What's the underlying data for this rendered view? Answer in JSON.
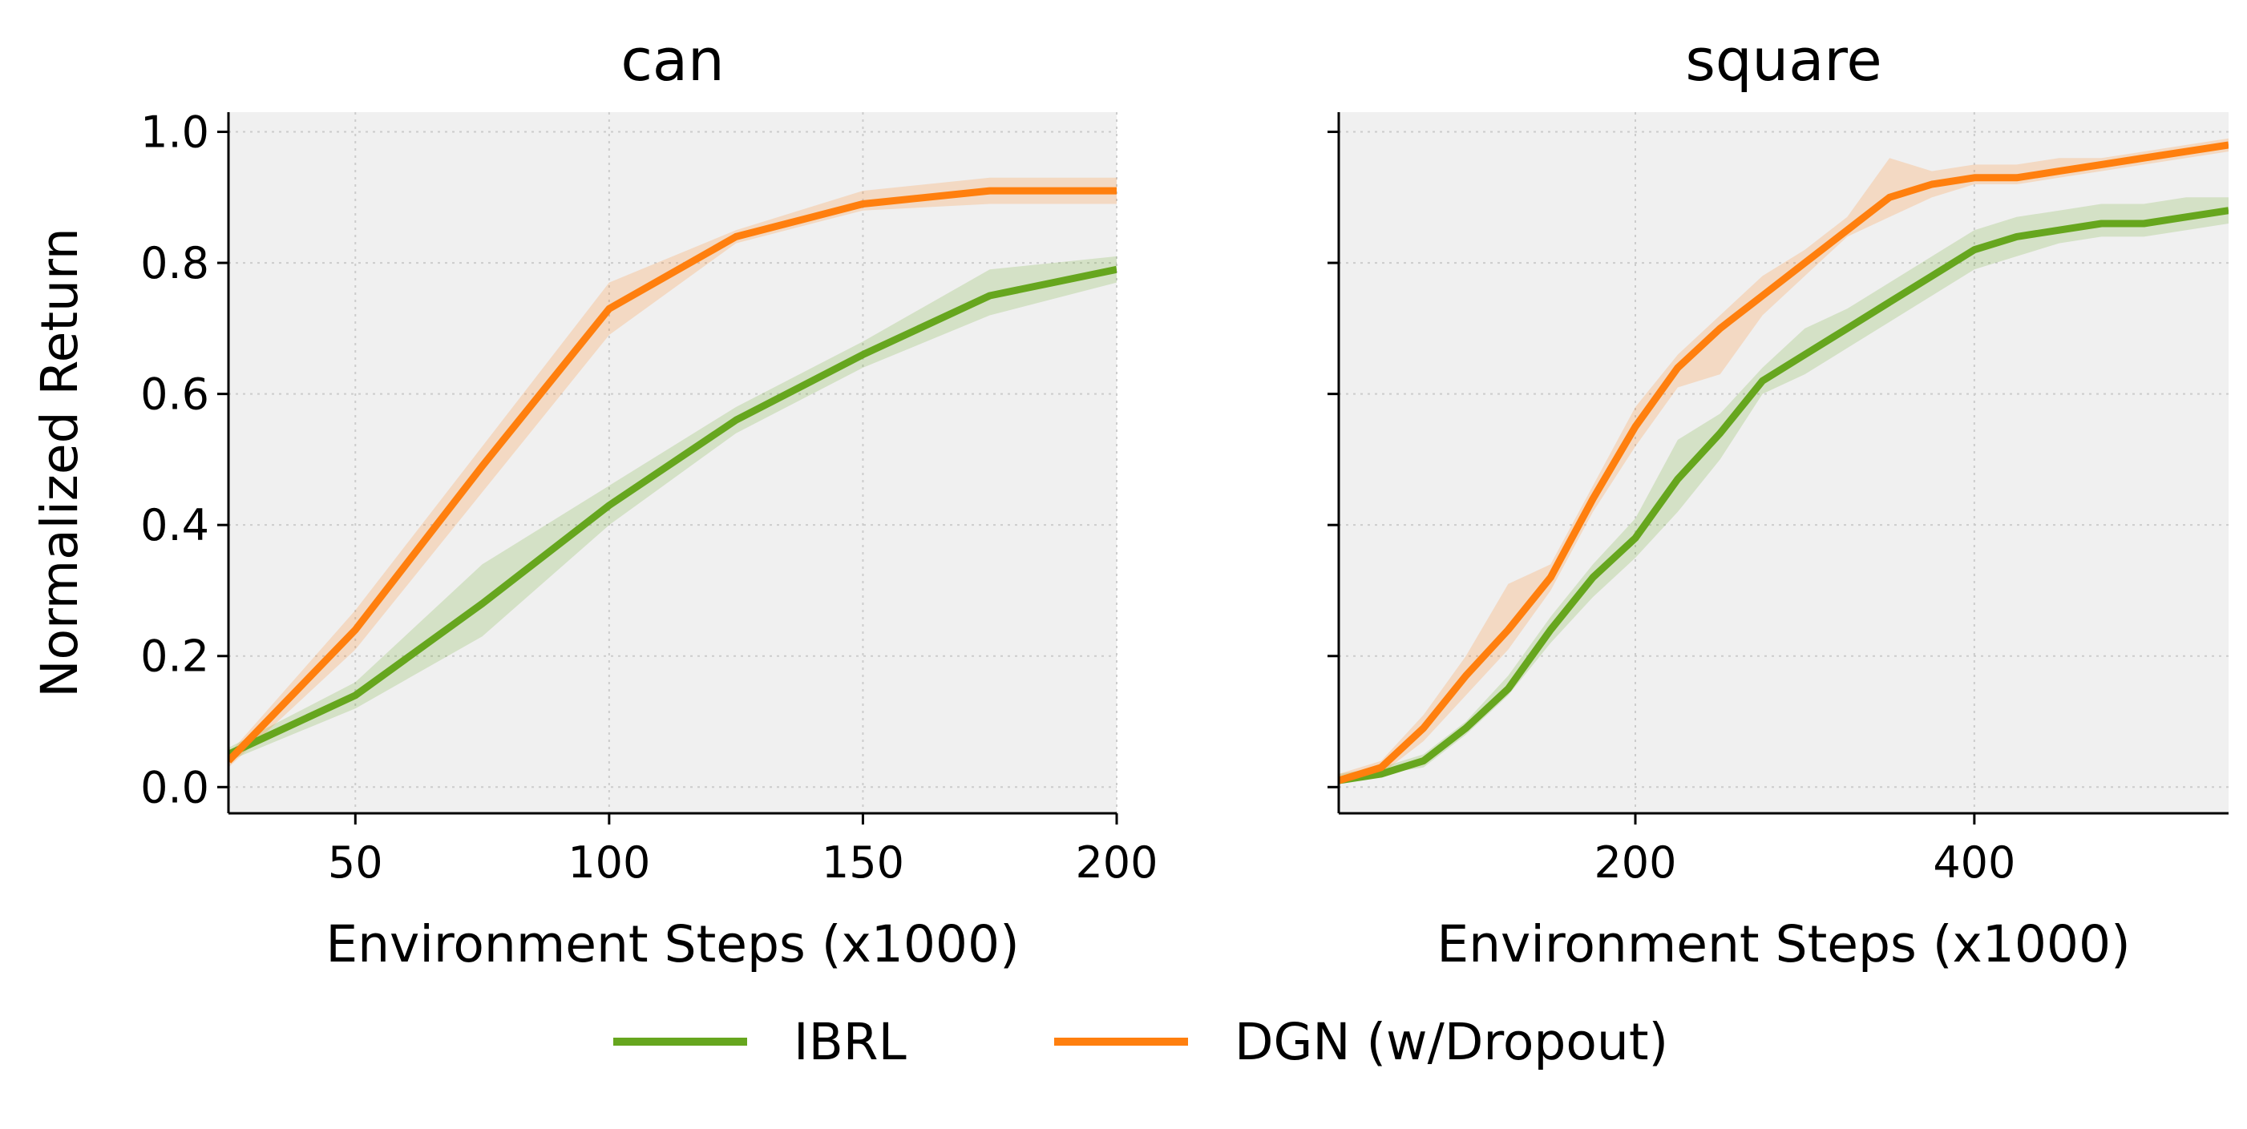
{
  "colors": {
    "IBRL": "#66a61e",
    "DGN (w/Dropout)": "#ff7f0e",
    "plot_bg": "#f0f0f0",
    "grid": "#cccccc"
  },
  "legend": {
    "placement": "bottom-center",
    "entries": [
      "IBRL",
      "DGN (w/Dropout)"
    ]
  },
  "chart_data": [
    {
      "type": "line",
      "title": "can",
      "xlabel": "Environment Steps (x1000)",
      "ylabel": "Normalized Return",
      "xlim": [
        25,
        200
      ],
      "ylim": [
        -0.04,
        1.03
      ],
      "xticks": [
        50,
        100,
        150,
        200
      ],
      "yticks": [
        0.0,
        0.2,
        0.4,
        0.6,
        0.8,
        1.0
      ],
      "xtick_labels": [
        "50",
        "100",
        "150",
        "200"
      ],
      "ytick_labels": [
        "0.0",
        "0.2",
        "0.4",
        "0.6",
        "0.8",
        "1.0"
      ],
      "grid": true,
      "series": [
        {
          "name": "IBRL",
          "x": [
            25,
            50,
            75,
            100,
            125,
            150,
            175,
            200
          ],
          "y": [
            0.05,
            0.14,
            0.28,
            0.43,
            0.56,
            0.66,
            0.75,
            0.79
          ],
          "y_low": [
            0.04,
            0.12,
            0.23,
            0.4,
            0.54,
            0.64,
            0.72,
            0.77
          ],
          "y_high": [
            0.06,
            0.16,
            0.34,
            0.46,
            0.58,
            0.68,
            0.79,
            0.81
          ]
        },
        {
          "name": "DGN (w/Dropout)",
          "x": [
            25,
            50,
            75,
            100,
            125,
            150,
            175,
            200
          ],
          "y": [
            0.04,
            0.24,
            0.49,
            0.73,
            0.84,
            0.89,
            0.91,
            0.91
          ],
          "y_low": [
            0.03,
            0.21,
            0.45,
            0.69,
            0.83,
            0.88,
            0.89,
            0.89
          ],
          "y_high": [
            0.05,
            0.27,
            0.52,
            0.77,
            0.85,
            0.91,
            0.93,
            0.93
          ]
        }
      ]
    },
    {
      "type": "line",
      "title": "square",
      "xlabel": "Environment Steps (x1000)",
      "ylabel": "",
      "xlim": [
        25,
        550
      ],
      "ylim": [
        -0.04,
        1.03
      ],
      "xticks": [
        200,
        400
      ],
      "yticks": [
        0.0,
        0.2,
        0.4,
        0.6,
        0.8,
        1.0
      ],
      "xtick_labels": [
        "200",
        "400"
      ],
      "ytick_labels": [],
      "grid": true,
      "series": [
        {
          "name": "IBRL",
          "x": [
            25,
            50,
            75,
            100,
            125,
            150,
            175,
            200,
            225,
            250,
            275,
            300,
            325,
            350,
            375,
            400,
            425,
            450,
            475,
            500,
            525,
            550
          ],
          "y": [
            0.01,
            0.02,
            0.04,
            0.09,
            0.15,
            0.24,
            0.32,
            0.38,
            0.47,
            0.54,
            0.62,
            0.66,
            0.7,
            0.74,
            0.78,
            0.82,
            0.84,
            0.85,
            0.86,
            0.86,
            0.87,
            0.88
          ],
          "y_low": [
            0.01,
            0.02,
            0.03,
            0.08,
            0.14,
            0.22,
            0.29,
            0.35,
            0.42,
            0.5,
            0.6,
            0.63,
            0.67,
            0.71,
            0.75,
            0.79,
            0.81,
            0.83,
            0.84,
            0.84,
            0.85,
            0.86
          ],
          "y_high": [
            0.02,
            0.03,
            0.05,
            0.1,
            0.17,
            0.26,
            0.34,
            0.41,
            0.53,
            0.57,
            0.64,
            0.7,
            0.73,
            0.77,
            0.81,
            0.85,
            0.87,
            0.88,
            0.89,
            0.89,
            0.9,
            0.9
          ]
        },
        {
          "name": "DGN (w/Dropout)",
          "x": [
            25,
            50,
            75,
            100,
            125,
            150,
            175,
            200,
            225,
            250,
            275,
            300,
            325,
            350,
            375,
            400,
            425,
            450,
            475,
            500,
            525,
            550
          ],
          "y": [
            0.01,
            0.03,
            0.09,
            0.17,
            0.24,
            0.32,
            0.44,
            0.55,
            0.64,
            0.7,
            0.75,
            0.8,
            0.85,
            0.9,
            0.92,
            0.93,
            0.93,
            0.94,
            0.95,
            0.96,
            0.97,
            0.98
          ],
          "y_low": [
            0.01,
            0.02,
            0.07,
            0.14,
            0.21,
            0.3,
            0.42,
            0.52,
            0.61,
            0.63,
            0.72,
            0.78,
            0.84,
            0.87,
            0.9,
            0.92,
            0.92,
            0.93,
            0.94,
            0.95,
            0.96,
            0.97
          ],
          "y_high": [
            0.02,
            0.04,
            0.11,
            0.2,
            0.31,
            0.34,
            0.46,
            0.58,
            0.66,
            0.72,
            0.78,
            0.82,
            0.87,
            0.96,
            0.94,
            0.95,
            0.95,
            0.96,
            0.96,
            0.97,
            0.98,
            0.99
          ]
        }
      ]
    }
  ]
}
